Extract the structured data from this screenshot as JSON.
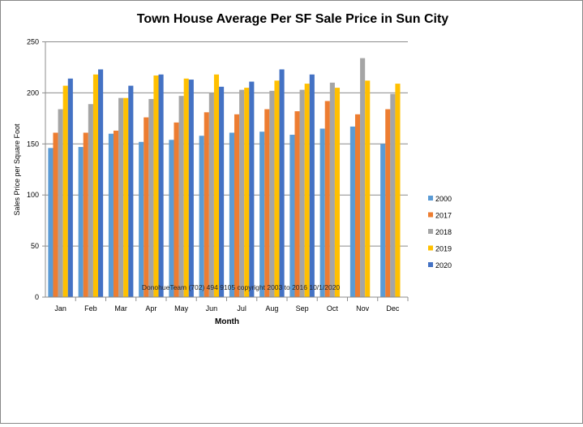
{
  "chart_data": {
    "type": "bar",
    "title": "Town House Average Per SF Sale Price in Sun City",
    "xlabel": "Month",
    "ylabel": "Sales Price per Square Foot",
    "ylim": [
      0,
      250
    ],
    "yticks": [
      0,
      50,
      100,
      150,
      200,
      250
    ],
    "grid": true,
    "legend_position": "right",
    "annotation": "DonohueTeam   (702) 494 9105 copyright  2003 to 2016  10/1/2020",
    "categories": [
      "Jan",
      "Feb",
      "Mar",
      "Apr",
      "May",
      "Jun",
      "Jul",
      "Aug",
      "Sep",
      "Oct",
      "Nov",
      "Dec"
    ],
    "series": [
      {
        "name": "2000",
        "color": "#5B9BD5",
        "values": [
          146,
          147,
          160,
          152,
          154,
          158,
          161,
          162,
          159,
          165,
          167,
          150
        ]
      },
      {
        "name": "2017",
        "color": "#ED7D31",
        "values": [
          161,
          161,
          163,
          176,
          171,
          181,
          179,
          184,
          182,
          192,
          179,
          184
        ]
      },
      {
        "name": "2018",
        "color": "#A5A5A5",
        "values": [
          184,
          189,
          195,
          194,
          197,
          200,
          203,
          202,
          203,
          210,
          234,
          199
        ]
      },
      {
        "name": "2019",
        "color": "#FFC000",
        "values": [
          207,
          218,
          195,
          217,
          214,
          218,
          205,
          212,
          209,
          205,
          212,
          209
        ]
      },
      {
        "name": "2020",
        "color": "#4472C4",
        "values": [
          214,
          223,
          207,
          218,
          213,
          206,
          211,
          223,
          218,
          null,
          null,
          null
        ]
      }
    ]
  }
}
